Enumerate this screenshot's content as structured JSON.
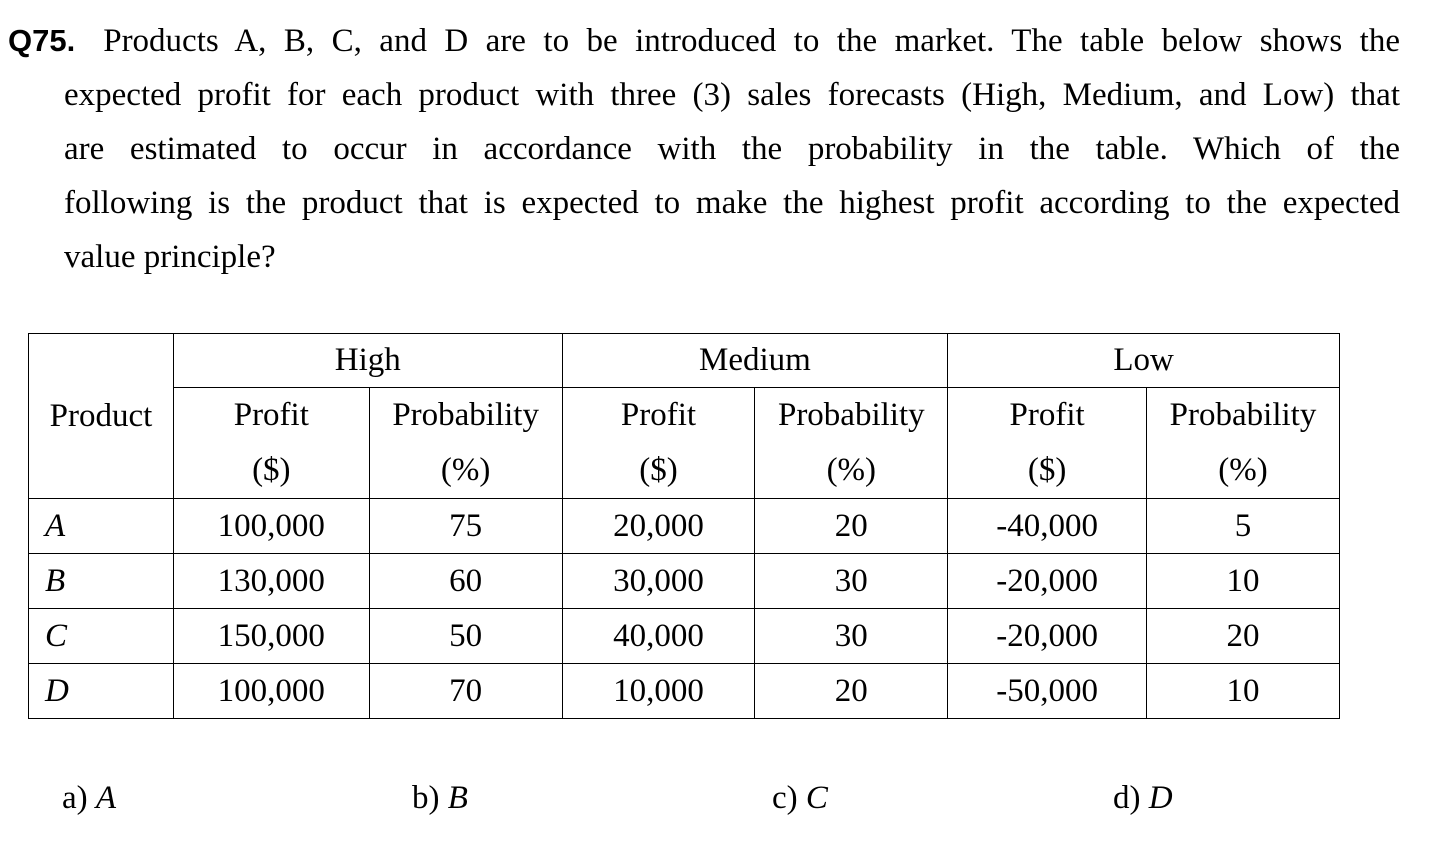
{
  "question": {
    "number": "Q75.",
    "first_line": "Products A, B, C, and D are to be introduced to the market. The table below shows the",
    "lines": [
      "expected profit for each product with three (3) sales forecasts (High, Medium, and Low) that",
      "are estimated to occur in accordance with the probability in the table. Which of the",
      "following is the product that is expected to make the highest profit according to the expected",
      "value principle?"
    ]
  },
  "table": {
    "product_header": "Product",
    "groups": [
      "High",
      "Medium",
      "Low"
    ],
    "sub_headers": {
      "profit": "Profit",
      "profit_unit": "($)",
      "probability": "Probability",
      "probability_unit": "(%)"
    },
    "rows": [
      {
        "product": "A",
        "high_profit": "100,000",
        "high_prob": "75",
        "medium_profit": "20,000",
        "medium_prob": "20",
        "low_profit": "-40,000",
        "low_prob": "5"
      },
      {
        "product": "B",
        "high_profit": "130,000",
        "high_prob": "60",
        "medium_profit": "30,000",
        "medium_prob": "30",
        "low_profit": "-20,000",
        "low_prob": "10"
      },
      {
        "product": "C",
        "high_profit": "150,000",
        "high_prob": "50",
        "medium_profit": "40,000",
        "medium_prob": "30",
        "low_profit": "-20,000",
        "low_prob": "20"
      },
      {
        "product": "D",
        "high_profit": "100,000",
        "high_prob": "70",
        "medium_profit": "10,000",
        "medium_prob": "20",
        "low_profit": "-50,000",
        "low_prob": "10"
      }
    ]
  },
  "choices": [
    {
      "letter": "a)",
      "value": "A"
    },
    {
      "letter": "b)",
      "value": "B"
    },
    {
      "letter": "c)",
      "value": "C"
    },
    {
      "letter": "d)",
      "value": "D"
    }
  ]
}
